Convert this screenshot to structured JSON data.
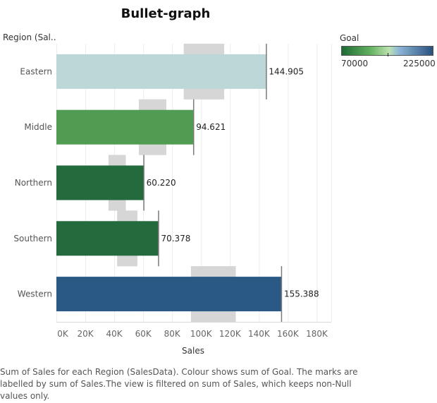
{
  "title": "Bullet-graph",
  "row_header": "Region (Sal..",
  "legend": {
    "title": "Goal",
    "min_label": "70000",
    "max_label": "225000",
    "color_low": "#1e6b35",
    "color_mid": "#bde3b0",
    "color_high_mid": "#8fb8d8",
    "color_high": "#29507f"
  },
  "caption": "Sum of Sales for each Region (SalesData). Colour shows sum of Goal. The marks are labelled by sum of Sales.The view is filtered on sum of Sales, which keeps non-Null values only.",
  "chart_data": {
    "type": "bar",
    "orientation": "horizontal",
    "categories": [
      "Eastern",
      "Middle",
      "Northern",
      "Southern",
      "Western"
    ],
    "values": [
      144905,
      94621,
      60220,
      70378,
      155388
    ],
    "value_labels": [
      "144.905",
      "94.621",
      "60.220",
      "70.378",
      "155.388"
    ],
    "bar_colors": [
      "#bcd7d8",
      "#519c53",
      "#236a3c",
      "#236a3c",
      "#2b5986"
    ],
    "goal_band_ranges": [
      [
        88000,
        116000
      ],
      [
        57000,
        76000
      ],
      [
        36000,
        48000
      ],
      [
        42000,
        56000
      ],
      [
        93000,
        124000
      ]
    ],
    "xlabel": "Sales",
    "xlim": [
      0,
      190000
    ],
    "xticks": [
      0,
      20000,
      40000,
      60000,
      80000,
      100000,
      120000,
      140000,
      160000,
      180000
    ],
    "xtick_labels": [
      "0K",
      "20K",
      "40K",
      "60K",
      "80K",
      "100K",
      "120K",
      "140K",
      "160K",
      "180K"
    ],
    "grid": true
  }
}
